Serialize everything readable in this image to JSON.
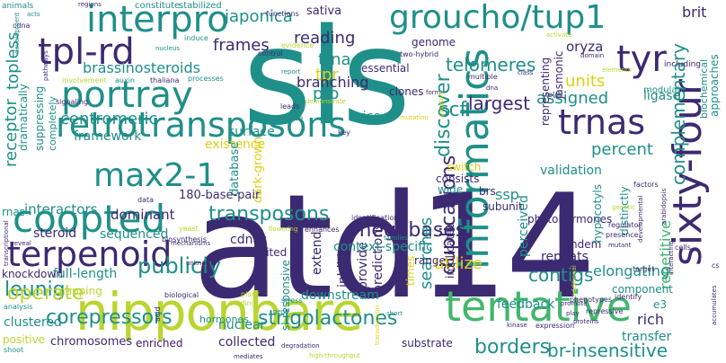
{
  "words": {
    "atd14": "atd14",
    "sls": "sls",
    "sixty_four": "sixty-four",
    "nipponbare": "nipponbare",
    "groucho": "groucho/tup1",
    "retrotransposons": "retrotransposons",
    "interpro": "interpro",
    "tentative": "tentative",
    "informatics": "informatics",
    "coopted": "coopted",
    "portray": "portray",
    "tplrd": "tpl-rd",
    "max21": "max2-1",
    "terpenoid": "terpenoid",
    "trnas": "trnas",
    "tyr": "tyr",
    "japonica": "japonica",
    "frames": "frames",
    "reading": "reading",
    "brassinosteroids": "brassinosteroids",
    "telomeres": "telomeres",
    "strigolactones": "strigolactones",
    "corepressors": "corepressors",
    "discover": "discover",
    "transposons": "transposons",
    "duplications": "duplications",
    "megabases": "megabases",
    "leunig": "leunig",
    "publicly": "publicly",
    "operate": "operate",
    "contigs": "contigs",
    "borders": "borders",
    "brinsensitive": "br-insensitive",
    "complementary": "complementary",
    "repetitive": "repetitive",
    "percent": "percent",
    "assigned": "assigned",
    "largest": "largest",
    "centromeric": "centromeric",
    "receptor": "receptor",
    "topless": "topless",
    "scf": "scf",
    "sativa": "sativa",
    "brit": "brit",
    "oryza": "oryza",
    "framework": "framework",
    "existence": "existence",
    "surface": "surface",
    "interactors": "interactors",
    "dominant": "dominant",
    "steroid": "steroid",
    "sequenced": "sequenced",
    "fulllength": "full-length",
    "knockdown": "knockdown",
    "chromosomes": "chromosomes",
    "clustered": "clustered",
    "enriched": "enriched",
    "collected": "collected",
    "nuclear": "nuclear",
    "downstream": "downstream",
    "utilize": "utilize",
    "searches": "searches",
    "ssp": "ssp",
    "repeats": "repeats",
    "elongating": "elongating",
    "rich": "rich",
    "transfer": "transfer",
    "cdnas": "cdnas",
    "extend": "extend",
    "inhibits": "inhibits",
    "provide": "provide",
    "predictions": "predictions",
    "cascade": "cascade",
    "times": "times",
    "range": "range",
    "implicated": "implicated",
    "feedback": "feedback",
    "trna": "trna",
    "tpr": "tpr",
    "pro": "pro",
    "units": "units",
    "ligase": "ligase",
    "clones": "clones",
    "branching": "branching",
    "genome": "genome",
    "phytohormones": "phytohormones",
    "validation": "validation",
    "tandem": "tandem",
    "perceived": "perceived",
    "switch": "switch",
    "consists": "consists",
    "brs": "brs",
    "subunit": "subunit",
    "slresponsive": "sl-responsive",
    "contextspecific": "context-specific",
    "dramatically": "dramatically",
    "suppressing": "suppressing",
    "completely": "completely",
    "dark_grown": "dark-grown",
    "database": "database",
    "bp180": "180-base-pair",
    "recruited": "recruited",
    "mapping": "mapping",
    "rnas": "rnas",
    "positive": "positive",
    "hormones": "hormones",
    "substrate": "substrate",
    "rice": "rice",
    "essential": "essential",
    "representing": "representing",
    "jasmonic": "jasmonic",
    "component": "component",
    "e3": "e3",
    "distinctly": "distinctly",
    "hypocotyls": "hypocotyls",
    "approaches": "approaches",
    "biochemical": "biochemical",
    "modulate": "modulate",
    "including": "including",
    "wide": "wide",
    "constitute": "constitute",
    "stabilized": "stabilized",
    "functions": "functions",
    "regions": "regions",
    "animals": "animals",
    "acts": "acts",
    "cdna": "cdna",
    "induce": "induce",
    "evidence": "evidence",
    "twohybrid": "two-hybrid",
    "activate": "activate",
    "domain": "domain",
    "elements": "elements",
    "signaling": "signaling",
    "auxin": "auxin",
    "thaliana": "thaliana",
    "processes": "processes",
    "involvement": "involvement",
    "pathways": "pathways",
    "control": "control",
    "nucleus": "nucleus",
    "report": "report",
    "demonstrate": "demonstrate",
    "leads": "leads",
    "diverse": "diverse",
    "key": "key",
    "multiple": "multiple",
    "dna": "dna",
    "class": "class",
    "form": "form",
    "roles": "roles",
    "mutation": "mutation",
    "putative": "putative",
    "factors": "factors",
    "genetic": "genetic",
    "regulator": "regulator",
    "presence": "presence",
    "mutant": "mutant",
    "cells": "cells",
    "target": "target",
    "phenotypes": "phenotypes",
    "proteins": "proteins",
    "identify": "identify",
    "promote": "promote",
    "play": "play",
    "repressive": "repressive",
    "expression": "expression",
    "kinase": "kinase",
    "additional": "additional",
    "accumulates": "accumulates",
    "arabidopsis": "arabidopsis",
    "developmental": "developmental",
    "interacting": "interacting",
    "biosynthesis": "biosynthesis",
    "data": "data",
    "yeast": "yeast",
    "flowering": "flowering",
    "enhances": "enhances",
    "identification": "identification",
    "families": "families",
    "reveal": "reveal",
    "unknown": "unknown",
    "mechanisms": "mechanisms",
    "transcriptional": "transcriptional",
    "biological": "biological",
    "plant": "plant",
    "binding": "binding",
    "stress": "stress",
    "gene": "gene",
    "short": "short",
    "development": "development",
    "analysis": "analysis",
    "shoot": "shoot",
    "acid": "acid",
    "degradation": "degradation",
    "mediates": "mediates",
    "highthroughput": "high-throughput",
    "transduction": "transduction",
    "cs": "cs"
  }
}
